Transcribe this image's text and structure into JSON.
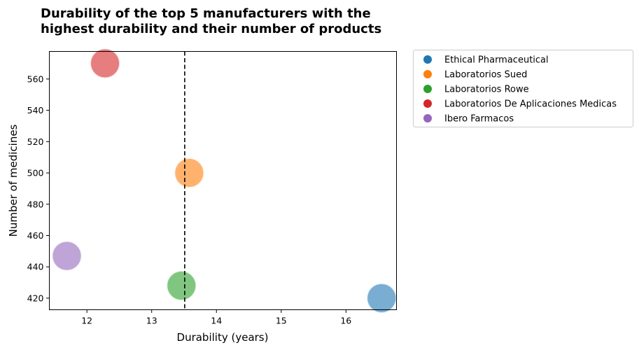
{
  "chart_data": {
    "type": "scatter",
    "title_lines": [
      "Durability of the top 5 manufacturers with the",
      "highest durability and their number of products"
    ],
    "xlabel": "Durability (years)",
    "ylabel": "Number of medicines",
    "xlim": [
      11.42,
      16.78
    ],
    "ylim": [
      412.6,
      577.6
    ],
    "xticks": [
      12,
      13,
      14,
      15,
      16
    ],
    "yticks": [
      420,
      440,
      460,
      480,
      500,
      520,
      540,
      560
    ],
    "reference_line": {
      "orientation": "vertical",
      "x": 13.51,
      "style": "dashed",
      "color": "#000000"
    },
    "grid": false,
    "legend_placement": "outside-top-right",
    "series": [
      {
        "name": "Ethical Pharmaceutical",
        "color": "#1f77b4",
        "x": 16.55,
        "y": 420
      },
      {
        "name": "Laboratorios Sued",
        "color": "#ff7f0e",
        "x": 13.58,
        "y": 500
      },
      {
        "name": "Laboratorios Rowe",
        "color": "#2ca02c",
        "x": 13.46,
        "y": 428
      },
      {
        "name": "Laboratorios De Aplicaciones Medicas",
        "color": "#d62728",
        "x": 12.28,
        "y": 570
      },
      {
        "name": "Ibero Farmacos",
        "color": "#9467bd",
        "x": 11.69,
        "y": 447
      }
    ]
  }
}
